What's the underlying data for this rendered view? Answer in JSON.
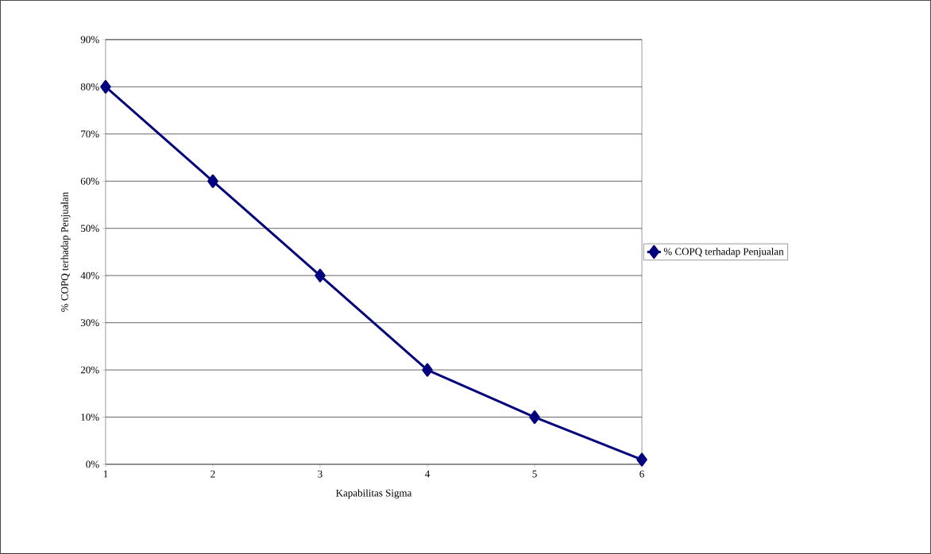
{
  "chart_data": {
    "type": "line",
    "xlabel": "Kapabilitas Sigma",
    "ylabel": "% COPQ terhadap Penjualan",
    "x": [
      1,
      2,
      3,
      4,
      5,
      6
    ],
    "series": [
      {
        "name": "% COPQ terhadap Penjualan",
        "color": "#000080",
        "values": [
          80,
          60,
          40,
          20,
          10,
          1
        ]
      }
    ],
    "xlim": [
      1,
      6
    ],
    "xticks": [
      1,
      2,
      3,
      4,
      5,
      6
    ],
    "ylim": [
      0,
      90
    ],
    "yticks": [
      {
        "value": 0,
        "label": "0%"
      },
      {
        "value": 10,
        "label": "10%"
      },
      {
        "value": 20,
        "label": "20%"
      },
      {
        "value": 30,
        "label": "30%"
      },
      {
        "value": 40,
        "label": "40%"
      },
      {
        "value": 50,
        "label": "50%"
      },
      {
        "value": 60,
        "label": "60%"
      },
      {
        "value": 70,
        "label": "70%"
      },
      {
        "value": 80,
        "label": "80%"
      },
      {
        "value": 90,
        "label": "90%"
      }
    ],
    "grid": "y",
    "legend": "right",
    "marker": "diamond",
    "line_style": "solid"
  }
}
